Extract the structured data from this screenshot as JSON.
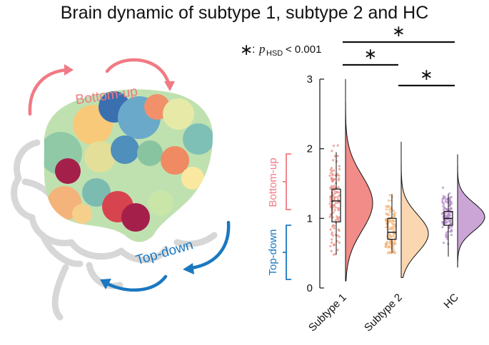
{
  "title": "Brain dynamic of subtype 1, subtype 2 and HC",
  "legend": {
    "star": "∗",
    "colon": ":",
    "p": "p",
    "sub": "HSD",
    "rest": " < 0.001"
  },
  "illustration": {
    "bottom_up": "Bottom-up",
    "top_down": "Top-down",
    "colors": {
      "bottom_up": "#f07a84",
      "top_down": "#1a78c0",
      "outline": "#d7d7d7"
    }
  },
  "chart_data": {
    "type": "violin",
    "categories": [
      "Subtype 1",
      "Subtype 2",
      "HC"
    ],
    "ylim": [
      0,
      3
    ],
    "yticks": [
      0,
      1,
      2,
      3
    ],
    "colors": [
      "#ef7f7b",
      "#fbd3a8",
      "#c59bd2"
    ],
    "dot_colors": [
      "#e98e86",
      "#f2b77d",
      "#b58cc8"
    ],
    "box_stats": [
      {
        "min": 0.48,
        "q1": 0.95,
        "median": 1.25,
        "q3": 1.42,
        "max": 1.95
      },
      {
        "min": 0.5,
        "q1": 0.7,
        "median": 0.8,
        "q3": 1.0,
        "max": 1.35
      },
      {
        "min": 0.45,
        "q1": 0.9,
        "median": 1.0,
        "q3": 1.1,
        "max": 1.35
      }
    ],
    "density_range": [
      [
        0.1,
        3.0
      ],
      [
        0.15,
        2.1
      ],
      [
        0.3,
        1.92
      ]
    ],
    "density_peak": [
      1.22,
      0.78,
      1.02
    ],
    "significance": [
      {
        "from": "Subtype 1",
        "to": "Subtype 2",
        "label": "∗"
      },
      {
        "from": "Subtype 2",
        "to": "HC",
        "label": "∗"
      },
      {
        "from": "Subtype 1",
        "to": "HC",
        "label": "∗"
      }
    ],
    "side_labels": {
      "upper": "Bottom-up",
      "lower": "Top-down"
    },
    "side_colors": {
      "upper": "#f07a84",
      "lower": "#1a78c0"
    }
  }
}
